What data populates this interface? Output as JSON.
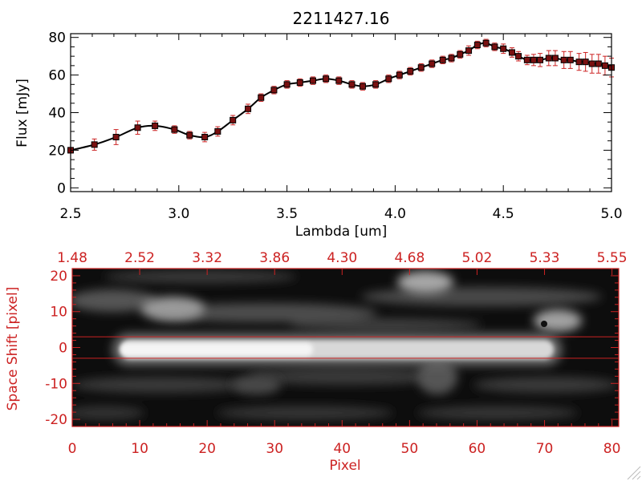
{
  "chart_data": [
    {
      "type": "line",
      "title": "2211427.16",
      "xlabel": "Lambda [um]",
      "ylabel": "Flux [mJy]",
      "xlim": [
        2.5,
        5.0
      ],
      "ylim": [
        -2,
        82
      ],
      "xticks": [
        2.5,
        3.0,
        3.5,
        4.0,
        4.5,
        5.0
      ],
      "xtick_labels": [
        "2.5",
        "3.0",
        "3.5",
        "4.0",
        "4.5",
        "5.0"
      ],
      "yticks": [
        0,
        20,
        40,
        60,
        80
      ],
      "ytick_labels": [
        "0",
        "20",
        "40",
        "60",
        "80"
      ],
      "series": [
        {
          "name": "flux",
          "x": [
            2.5,
            2.61,
            2.71,
            2.81,
            2.89,
            2.98,
            3.05,
            3.12,
            3.18,
            3.25,
            3.32,
            3.38,
            3.44,
            3.5,
            3.56,
            3.62,
            3.68,
            3.74,
            3.8,
            3.85,
            3.91,
            3.97,
            4.02,
            4.07,
            4.12,
            4.17,
            4.22,
            4.26,
            4.3,
            4.34,
            4.38,
            4.42,
            4.46,
            4.5,
            4.54,
            4.57,
            4.61,
            4.64,
            4.67,
            4.71,
            4.74,
            4.78,
            4.81,
            4.85,
            4.88,
            4.91,
            4.94,
            4.97,
            5.0
          ],
          "y": [
            20,
            23,
            27,
            32,
            33,
            31,
            28,
            27,
            30,
            36,
            42,
            48,
            52,
            55,
            56,
            57,
            58,
            57,
            55,
            54,
            55,
            58,
            60,
            62,
            64,
            66,
            68,
            69,
            71,
            73,
            76,
            77,
            75,
            74,
            72,
            70,
            68,
            68,
            68,
            69,
            69,
            68,
            68,
            67,
            67,
            66,
            66,
            65,
            64
          ],
          "err": [
            1.5,
            3,
            4,
            3.5,
            2.5,
            2,
            2,
            2.5,
            2.5,
            2.5,
            2.5,
            2,
            2,
            2,
            2,
            2,
            2,
            2,
            2,
            2,
            2,
            2,
            2,
            2,
            2,
            2,
            2,
            2,
            2,
            2.5,
            2,
            2,
            2,
            2.5,
            2.5,
            2.5,
            2.5,
            3,
            3.5,
            4,
            4,
            4.5,
            4.5,
            4.5,
            5,
            5,
            5,
            5,
            5
          ]
        }
      ]
    },
    {
      "type": "heatmap",
      "xlabel": "Pixel",
      "ylabel": "Space Shift [pixel]",
      "xlim": [
        0,
        81
      ],
      "ylim": [
        -22,
        22
      ],
      "xticks": [
        0,
        10,
        20,
        30,
        40,
        50,
        60,
        70,
        80
      ],
      "xtick_labels": [
        "0",
        "10",
        "20",
        "30",
        "40",
        "50",
        "60",
        "70",
        "80"
      ],
      "yticks": [
        -20,
        -10,
        0,
        10,
        20
      ],
      "ytick_labels": [
        "-20",
        "-10",
        "0",
        "10",
        "20"
      ],
      "top_axis_ticks": [
        0,
        10,
        20,
        30,
        40,
        50,
        60,
        70,
        80
      ],
      "top_axis_labels": [
        "1.48",
        "2.52",
        "3.32",
        "3.86",
        "4.30",
        "4.68",
        "5.02",
        "5.33",
        "5.55"
      ],
      "extraction_lines": [
        3,
        -3
      ],
      "line_color": "#cc2222",
      "features": [
        {
          "name": "trace",
          "x": [
            8,
            74
          ],
          "y": 0
        },
        {
          "name": "blob-upper-left",
          "x": 15,
          "y": 11
        },
        {
          "name": "blob-top-mid",
          "x": 52,
          "y": 18
        },
        {
          "name": "blob-right",
          "x": 74,
          "y": 8
        },
        {
          "name": "blob-lower-mid",
          "x": 55,
          "y": -8
        }
      ]
    }
  ],
  "colors": {
    "axis": "#000000",
    "bottom_axis": "#cc2222",
    "line": "#000000",
    "marker": "#7a1010",
    "errorbar": "#cc2222",
    "background": "#ffffff"
  }
}
